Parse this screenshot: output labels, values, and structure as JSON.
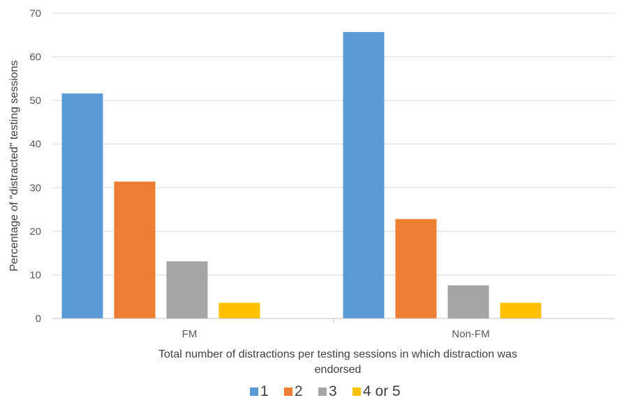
{
  "chart_data": {
    "type": "bar",
    "title": "",
    "categories": [
      "FM",
      "Non-FM"
    ],
    "series": [
      {
        "name": "1",
        "values": [
          51.6,
          65.7
        ],
        "color": "#5b9bd5"
      },
      {
        "name": "2",
        "values": [
          31.4,
          22.8
        ],
        "color": "#ed7d31"
      },
      {
        "name": "3",
        "values": [
          13.1,
          7.6
        ],
        "color": "#a5a5a5"
      },
      {
        "name": "4 or 5",
        "values": [
          3.6,
          3.6
        ],
        "color": "#ffc000"
      }
    ],
    "xlabel_line1": "Total number of distractions per testing sessions in which distraction was",
    "xlabel_line2": "endorsed",
    "ylabel": "Percentage of \"distracted\" testing sessions",
    "ylim": [
      0,
      70
    ],
    "yticks": [
      0,
      10,
      20,
      30,
      40,
      50,
      60,
      70
    ],
    "grid": true,
    "legend_position": "bottom"
  }
}
